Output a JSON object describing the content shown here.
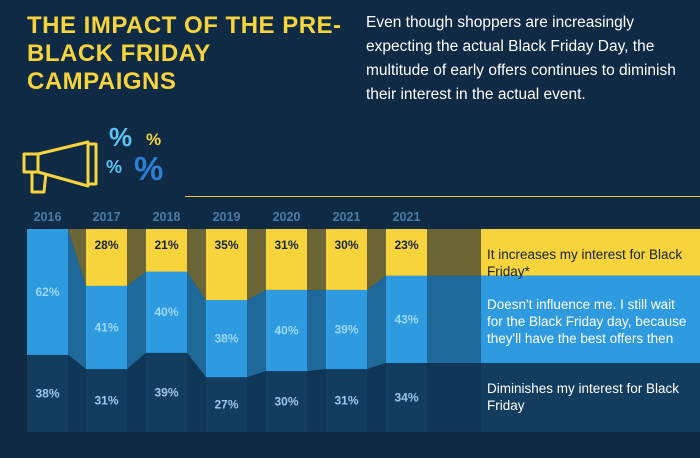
{
  "header": {
    "title": "THE IMPACT OF THE PRE-BLACK FRIDAY CAMPAIGNS",
    "description": "Even though shoppers are increasingly expecting the actual Black Friday Day, the multitude of early offers continues to diminish their interest in the actual event."
  },
  "icons": {
    "megaphone": "megaphone-icon",
    "percent_symbols": [
      "%",
      "%",
      "%",
      "%"
    ]
  },
  "colors": {
    "background": "#0e2a45",
    "title": "#f7d33c",
    "increases": "#f7d33c",
    "no_influence": "#2e9be0",
    "diminishes": "#123d5f",
    "year_label": "#4a7ca8",
    "percent_blue_light": "#5bc4ef",
    "percent_blue_dark": "#2e7fd3"
  },
  "chart_data": {
    "type": "bar",
    "stacked": true,
    "categories": [
      "2016",
      "2017",
      "2018",
      "2019",
      "2020",
      "2021",
      "2021"
    ],
    "series": [
      {
        "name": "Diminishes my interest for Black Friday",
        "values": [
          38,
          31,
          39,
          27,
          30,
          31,
          34
        ]
      },
      {
        "name": "Doesn't influence me. I still wait for the Black Friday day, because they'll have the best offers then",
        "values": [
          62,
          41,
          40,
          38,
          40,
          39,
          43
        ]
      },
      {
        "name": "It increases my interest for Black Friday*",
        "values": [
          null,
          28,
          21,
          35,
          31,
          30,
          23
        ]
      }
    ],
    "data_labels": [
      [
        "38%",
        "31%",
        "39%",
        "27%",
        "30%",
        "31%",
        "34%"
      ],
      [
        "62%",
        "41%",
        "40%",
        "38%",
        "40%",
        "39%",
        "43%"
      ],
      [
        "",
        "28%",
        "21%",
        "35%",
        "31%",
        "30%",
        "23%"
      ]
    ],
    "legend": [
      "It increases my interest for Black Friday*",
      "Doesn't influence me. I still wait for the Black Friday day, because they'll have the best offers then",
      "Diminishes my interest for Black Friday"
    ],
    "legend_position": "right",
    "ylim": [
      0,
      100
    ],
    "grid": false
  }
}
